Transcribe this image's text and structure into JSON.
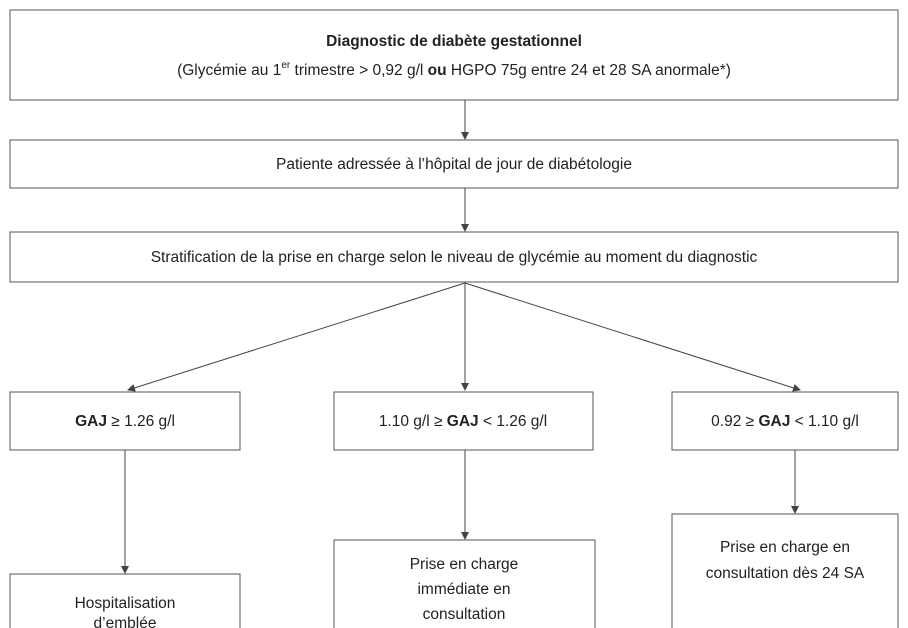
{
  "nodes": [
    {
      "title": "Diagnostic de diabète gestationnel",
      "detail": [
        "(Glycémie au 1",
        "er",
        " trimestre > 0,92 g/l ",
        "ou",
        " HGPO 75g entre 24 et 28 SA anormale*)"
      ]
    },
    {
      "text": "Patiente adressée à l’hôpital de jour de diabétologie"
    },
    {
      "text": "Stratification de la prise en charge selon le niveau de glycémie au moment du diagnostic"
    },
    {
      "parts": [
        "GAJ",
        " ≥ 1.26 g/l"
      ]
    },
    {
      "parts": [
        "1.10 g/l ≥ ",
        "GAJ",
        " < 1.26 g/l"
      ]
    },
    {
      "parts": [
        "0.92 ≥ ",
        "GAJ",
        " < 1.10 g/l"
      ]
    },
    {
      "lines": [
        "Hospitalisation",
        "d’emblée"
      ]
    },
    {
      "lines": [
        "Prise en charge",
        "immédiate en",
        "consultation"
      ]
    },
    {
      "lines": [
        "Prise en charge en",
        "consultation dès 24 SA"
      ]
    }
  ]
}
